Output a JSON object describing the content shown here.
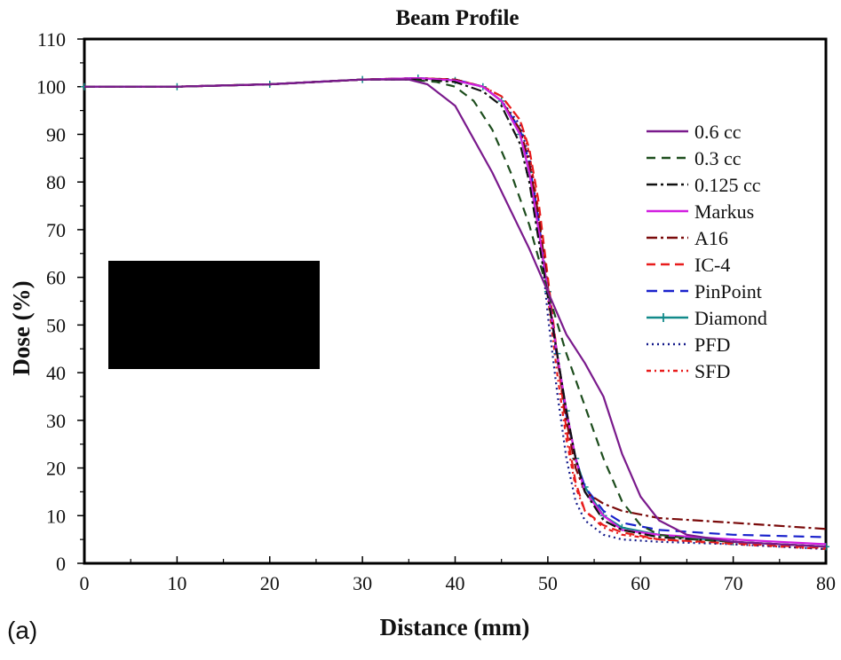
{
  "panel_label": "(a)",
  "chart_data": {
    "type": "line",
    "title": "Beam Profile",
    "xlabel": "Distance (mm)",
    "ylabel": "Dose (%)",
    "xlim": [
      0,
      80
    ],
    "ylim": [
      0,
      110
    ],
    "xticks": [
      0,
      10,
      20,
      30,
      40,
      50,
      60,
      70,
      80
    ],
    "yticks": [
      0,
      10,
      20,
      30,
      40,
      50,
      60,
      70,
      80,
      90,
      100,
      110
    ],
    "grid": false,
    "legend_position": "right",
    "redacted_box": true,
    "series": [
      {
        "name": "0.6 cc",
        "color": "#7a1a8c",
        "dash": "solid",
        "points": [
          [
            0,
            100
          ],
          [
            10,
            100
          ],
          [
            20,
            100.5
          ],
          [
            30,
            101.5
          ],
          [
            35,
            101.5
          ],
          [
            37,
            100.5
          ],
          [
            40,
            96
          ],
          [
            42,
            89
          ],
          [
            44,
            82
          ],
          [
            46,
            74
          ],
          [
            48,
            66
          ],
          [
            50,
            57
          ],
          [
            52,
            48
          ],
          [
            54,
            42
          ],
          [
            56,
            35
          ],
          [
            58,
            23
          ],
          [
            60,
            14
          ],
          [
            62,
            9
          ],
          [
            65,
            6
          ],
          [
            70,
            4.5
          ],
          [
            75,
            4
          ],
          [
            80,
            3.5
          ]
        ]
      },
      {
        "name": "0.3 cc",
        "color": "#1d4d1d",
        "dash": "10,7",
        "points": [
          [
            0,
            100
          ],
          [
            10,
            100
          ],
          [
            20,
            100.5
          ],
          [
            30,
            101.5
          ],
          [
            35,
            101.5
          ],
          [
            38,
            101
          ],
          [
            40,
            100
          ],
          [
            42,
            97
          ],
          [
            44,
            91
          ],
          [
            46,
            82
          ],
          [
            48,
            71
          ],
          [
            50,
            57
          ],
          [
            52,
            44
          ],
          [
            54,
            33
          ],
          [
            56,
            22
          ],
          [
            58,
            13
          ],
          [
            60,
            8
          ],
          [
            62,
            6
          ],
          [
            66,
            5
          ],
          [
            70,
            4.5
          ],
          [
            80,
            3.5
          ]
        ]
      },
      {
        "name": "0.125 cc",
        "color": "#111111",
        "dash": "12,4,3,4",
        "points": [
          [
            0,
            100
          ],
          [
            10,
            100
          ],
          [
            20,
            100.5
          ],
          [
            30,
            101.5
          ],
          [
            36,
            101.5
          ],
          [
            40,
            101
          ],
          [
            43,
            99
          ],
          [
            45,
            96
          ],
          [
            47,
            88
          ],
          [
            48,
            80
          ],
          [
            49,
            68
          ],
          [
            50,
            56
          ],
          [
            51,
            44
          ],
          [
            52,
            32
          ],
          [
            53,
            22
          ],
          [
            54,
            15
          ],
          [
            56,
            9
          ],
          [
            58,
            7
          ],
          [
            62,
            5.5
          ],
          [
            70,
            4.5
          ],
          [
            80,
            3.5
          ]
        ]
      },
      {
        "name": "Markus",
        "color": "#d21ee0",
        "dash": "solid",
        "points": [
          [
            0,
            100
          ],
          [
            10,
            100
          ],
          [
            20,
            100.5
          ],
          [
            30,
            101.5
          ],
          [
            36,
            101.8
          ],
          [
            40,
            101.3
          ],
          [
            43,
            100
          ],
          [
            45,
            97
          ],
          [
            47,
            90
          ],
          [
            48,
            82
          ],
          [
            49,
            70
          ],
          [
            50,
            57
          ],
          [
            51,
            44
          ],
          [
            52,
            32
          ],
          [
            53,
            22
          ],
          [
            54,
            15
          ],
          [
            56,
            10
          ],
          [
            58,
            7
          ],
          [
            62,
            6
          ],
          [
            70,
            5
          ],
          [
            80,
            4
          ]
        ]
      },
      {
        "name": "A16",
        "color": "#7a0a0a",
        "dash": "12,4,3,4",
        "points": [
          [
            0,
            100
          ],
          [
            10,
            100
          ],
          [
            20,
            100.5
          ],
          [
            30,
            101.5
          ],
          [
            36,
            101.8
          ],
          [
            40,
            101.5
          ],
          [
            43,
            100
          ],
          [
            45,
            97
          ],
          [
            47,
            91
          ],
          [
            48,
            84
          ],
          [
            49,
            73
          ],
          [
            50,
            58
          ],
          [
            51,
            44
          ],
          [
            52,
            30
          ],
          [
            53,
            20
          ],
          [
            54,
            15
          ],
          [
            56,
            12.5
          ],
          [
            58,
            11
          ],
          [
            62,
            9.5
          ],
          [
            70,
            8.5
          ],
          [
            80,
            7.2
          ]
        ]
      },
      {
        "name": "IC-4",
        "color": "#e81c1c",
        "dash": "10,6",
        "points": [
          [
            0,
            100
          ],
          [
            10,
            100
          ],
          [
            20,
            100.5
          ],
          [
            30,
            101.5
          ],
          [
            36,
            101.8
          ],
          [
            40,
            101.5
          ],
          [
            43,
            100
          ],
          [
            45,
            98
          ],
          [
            47,
            93
          ],
          [
            48,
            87
          ],
          [
            49,
            76
          ],
          [
            50,
            60
          ],
          [
            51,
            44
          ],
          [
            52,
            28
          ],
          [
            53,
            17
          ],
          [
            54,
            11
          ],
          [
            56,
            8
          ],
          [
            58,
            6.5
          ],
          [
            62,
            5
          ],
          [
            70,
            4.2
          ],
          [
            80,
            3.2
          ]
        ]
      },
      {
        "name": "PinPoint",
        "color": "#1a22cc",
        "dash": "12,7",
        "points": [
          [
            0,
            100
          ],
          [
            10,
            100
          ],
          [
            20,
            100.5
          ],
          [
            30,
            101.5
          ],
          [
            36,
            101.8
          ],
          [
            40,
            101.5
          ],
          [
            43,
            100
          ],
          [
            45,
            97
          ],
          [
            47,
            91
          ],
          [
            48,
            84
          ],
          [
            49,
            72
          ],
          [
            50,
            57
          ],
          [
            51,
            43
          ],
          [
            52,
            31
          ],
          [
            53,
            22
          ],
          [
            54,
            16
          ],
          [
            56,
            11
          ],
          [
            58,
            8.5
          ],
          [
            62,
            7
          ],
          [
            70,
            6
          ],
          [
            80,
            5.5
          ]
        ]
      },
      {
        "name": "Diamond",
        "color": "#128a8a",
        "dash": "solid",
        "marker": "plus",
        "points": [
          [
            0,
            100
          ],
          [
            10,
            100
          ],
          [
            20,
            100.5
          ],
          [
            30,
            101.5
          ],
          [
            36,
            101.8
          ],
          [
            40,
            101.3
          ],
          [
            43,
            100
          ],
          [
            45,
            97
          ],
          [
            47,
            90
          ],
          [
            48,
            82
          ],
          [
            49,
            70
          ],
          [
            50,
            57
          ],
          [
            51,
            44
          ],
          [
            52,
            32
          ],
          [
            53,
            22
          ],
          [
            54,
            16
          ],
          [
            56,
            10
          ],
          [
            58,
            7.5
          ],
          [
            62,
            6
          ],
          [
            70,
            4.5
          ],
          [
            80,
            3.5
          ]
        ]
      },
      {
        "name": "PFD",
        "color": "#141a8a",
        "dash": "2,4",
        "points": [
          [
            0,
            100
          ],
          [
            10,
            100
          ],
          [
            20,
            100.5
          ],
          [
            30,
            101.5
          ],
          [
            36,
            101.8
          ],
          [
            40,
            101.3
          ],
          [
            43,
            100
          ],
          [
            45,
            97
          ],
          [
            47,
            92
          ],
          [
            48,
            85
          ],
          [
            49,
            72
          ],
          [
            50,
            52
          ],
          [
            51,
            36
          ],
          [
            52,
            22
          ],
          [
            53,
            13
          ],
          [
            54,
            9
          ],
          [
            56,
            6
          ],
          [
            58,
            5
          ],
          [
            62,
            4.5
          ],
          [
            70,
            4
          ],
          [
            80,
            3
          ]
        ]
      },
      {
        "name": "SFD",
        "color": "#e81c1c",
        "dash": "5,4,2,4",
        "points": [
          [
            0,
            100
          ],
          [
            10,
            100
          ],
          [
            20,
            100.5
          ],
          [
            30,
            101.5
          ],
          [
            36,
            101.8
          ],
          [
            40,
            101.5
          ],
          [
            43,
            100
          ],
          [
            45,
            98
          ],
          [
            47,
            93
          ],
          [
            48,
            86
          ],
          [
            49,
            74
          ],
          [
            50,
            56
          ],
          [
            51,
            40
          ],
          [
            52,
            26
          ],
          [
            53,
            16
          ],
          [
            54,
            11
          ],
          [
            56,
            7.5
          ],
          [
            58,
            6
          ],
          [
            62,
            5
          ],
          [
            70,
            4
          ],
          [
            80,
            3
          ]
        ]
      }
    ]
  }
}
